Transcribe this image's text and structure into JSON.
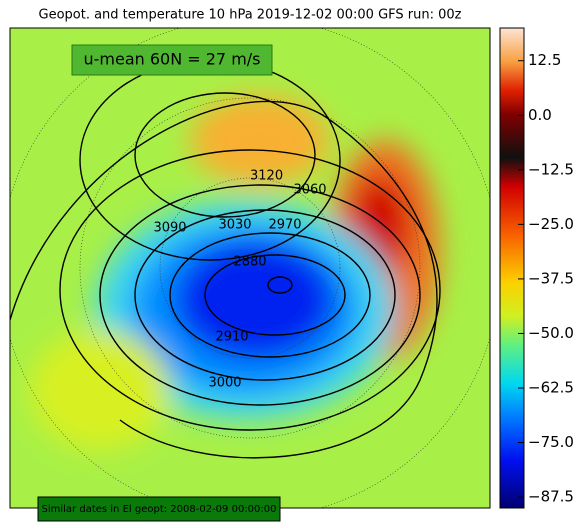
{
  "title": "Geopot. and temperature 10 hPa 2019-12-02 00:00 GFS run: 00z",
  "annotation": "u-mean 60N = 27 m/s",
  "footer": "Similar dates in El geopt: 2008-02-09 00:00:00",
  "colorbar": {
    "lim": [
      -90,
      20
    ],
    "ticks": [
      {
        "value": 12.5,
        "label": "12.5"
      },
      {
        "value": 0,
        "label": "0.0"
      },
      {
        "value": -12.5,
        "label": "−12.5"
      },
      {
        "value": -25,
        "label": "−25.0"
      },
      {
        "value": -37.5,
        "label": "−37.5"
      },
      {
        "value": -50,
        "label": "−50.0"
      },
      {
        "value": -62.5,
        "label": "−62.5"
      },
      {
        "value": -75,
        "label": "−75.0"
      },
      {
        "value": -87.5,
        "label": "−87.5"
      }
    ]
  },
  "contour_labels": [
    3120,
    3060,
    3090,
    3030,
    2970,
    2880,
    2910,
    3000
  ]
}
